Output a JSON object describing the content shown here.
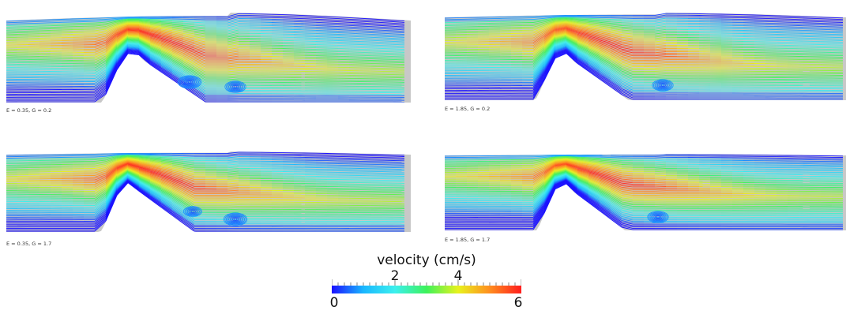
{
  "panels": [
    {
      "label": "E = 0.35, G = 0.2",
      "case": "a"
    },
    {
      "label": "E = 1.85, G = 0.2",
      "case": "b"
    },
    {
      "label": "E = 0.35, G = 1.7",
      "case": "c"
    },
    {
      "label": "E = 1.85, G = 1.7",
      "case": "d"
    }
  ],
  "colorbar": {
    "title": "velocity (cm/s)",
    "min_label": "0",
    "max_label": "6",
    "mid_labels": [
      "2",
      "4"
    ],
    "range": [
      0,
      6
    ],
    "colors": [
      "#1a10ff",
      "#19b7ff",
      "#3cf0ee",
      "#3df25a",
      "#e8f21d",
      "#ff8e1f",
      "#ff1d1d"
    ]
  }
}
